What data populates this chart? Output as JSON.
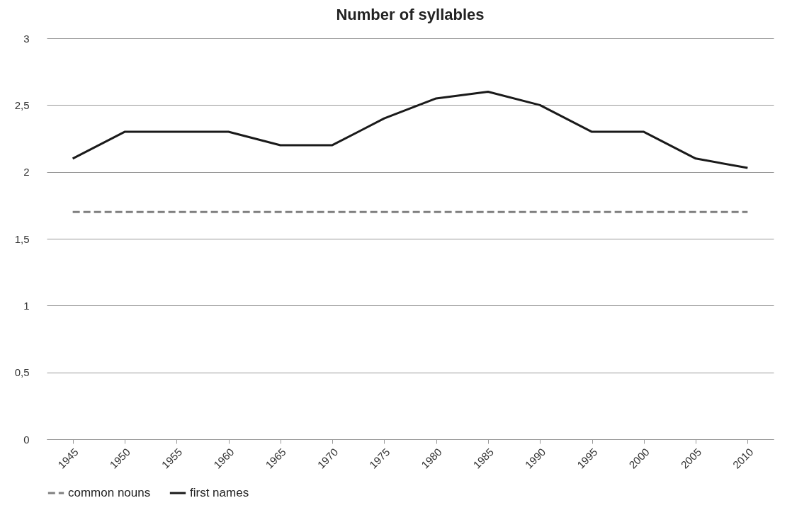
{
  "chart_data": {
    "type": "line",
    "title": "Number of syllables",
    "categories": [
      "1945",
      "1950",
      "1955",
      "1960",
      "1965",
      "1970",
      "1975",
      "1980",
      "1985",
      "1990",
      "1995",
      "2000",
      "2005",
      "2010"
    ],
    "series": [
      {
        "name": "common nouns",
        "color": "#808080",
        "line_style": "dashed",
        "values": [
          1.7,
          1.7,
          1.7,
          1.7,
          1.7,
          1.7,
          1.7,
          1.7,
          1.7,
          1.7,
          1.7,
          1.7,
          1.7,
          1.7
        ]
      },
      {
        "name": "first names",
        "color": "#1a1a1a",
        "line_style": "solid",
        "values": [
          2.1,
          2.3,
          2.3,
          2.3,
          2.2,
          2.2,
          2.4,
          2.55,
          2.6,
          2.5,
          2.3,
          2.3,
          2.1,
          2.03
        ]
      }
    ],
    "ylim": [
      0,
      3
    ],
    "yticks": [
      0,
      {
        "value": 0.5,
        "label": "0,5"
      },
      1,
      {
        "value": 1.5,
        "label": "1,5"
      },
      2,
      {
        "value": 2.5,
        "label": "2,5"
      },
      3
    ],
    "grid": "y",
    "legend": "bottom"
  }
}
